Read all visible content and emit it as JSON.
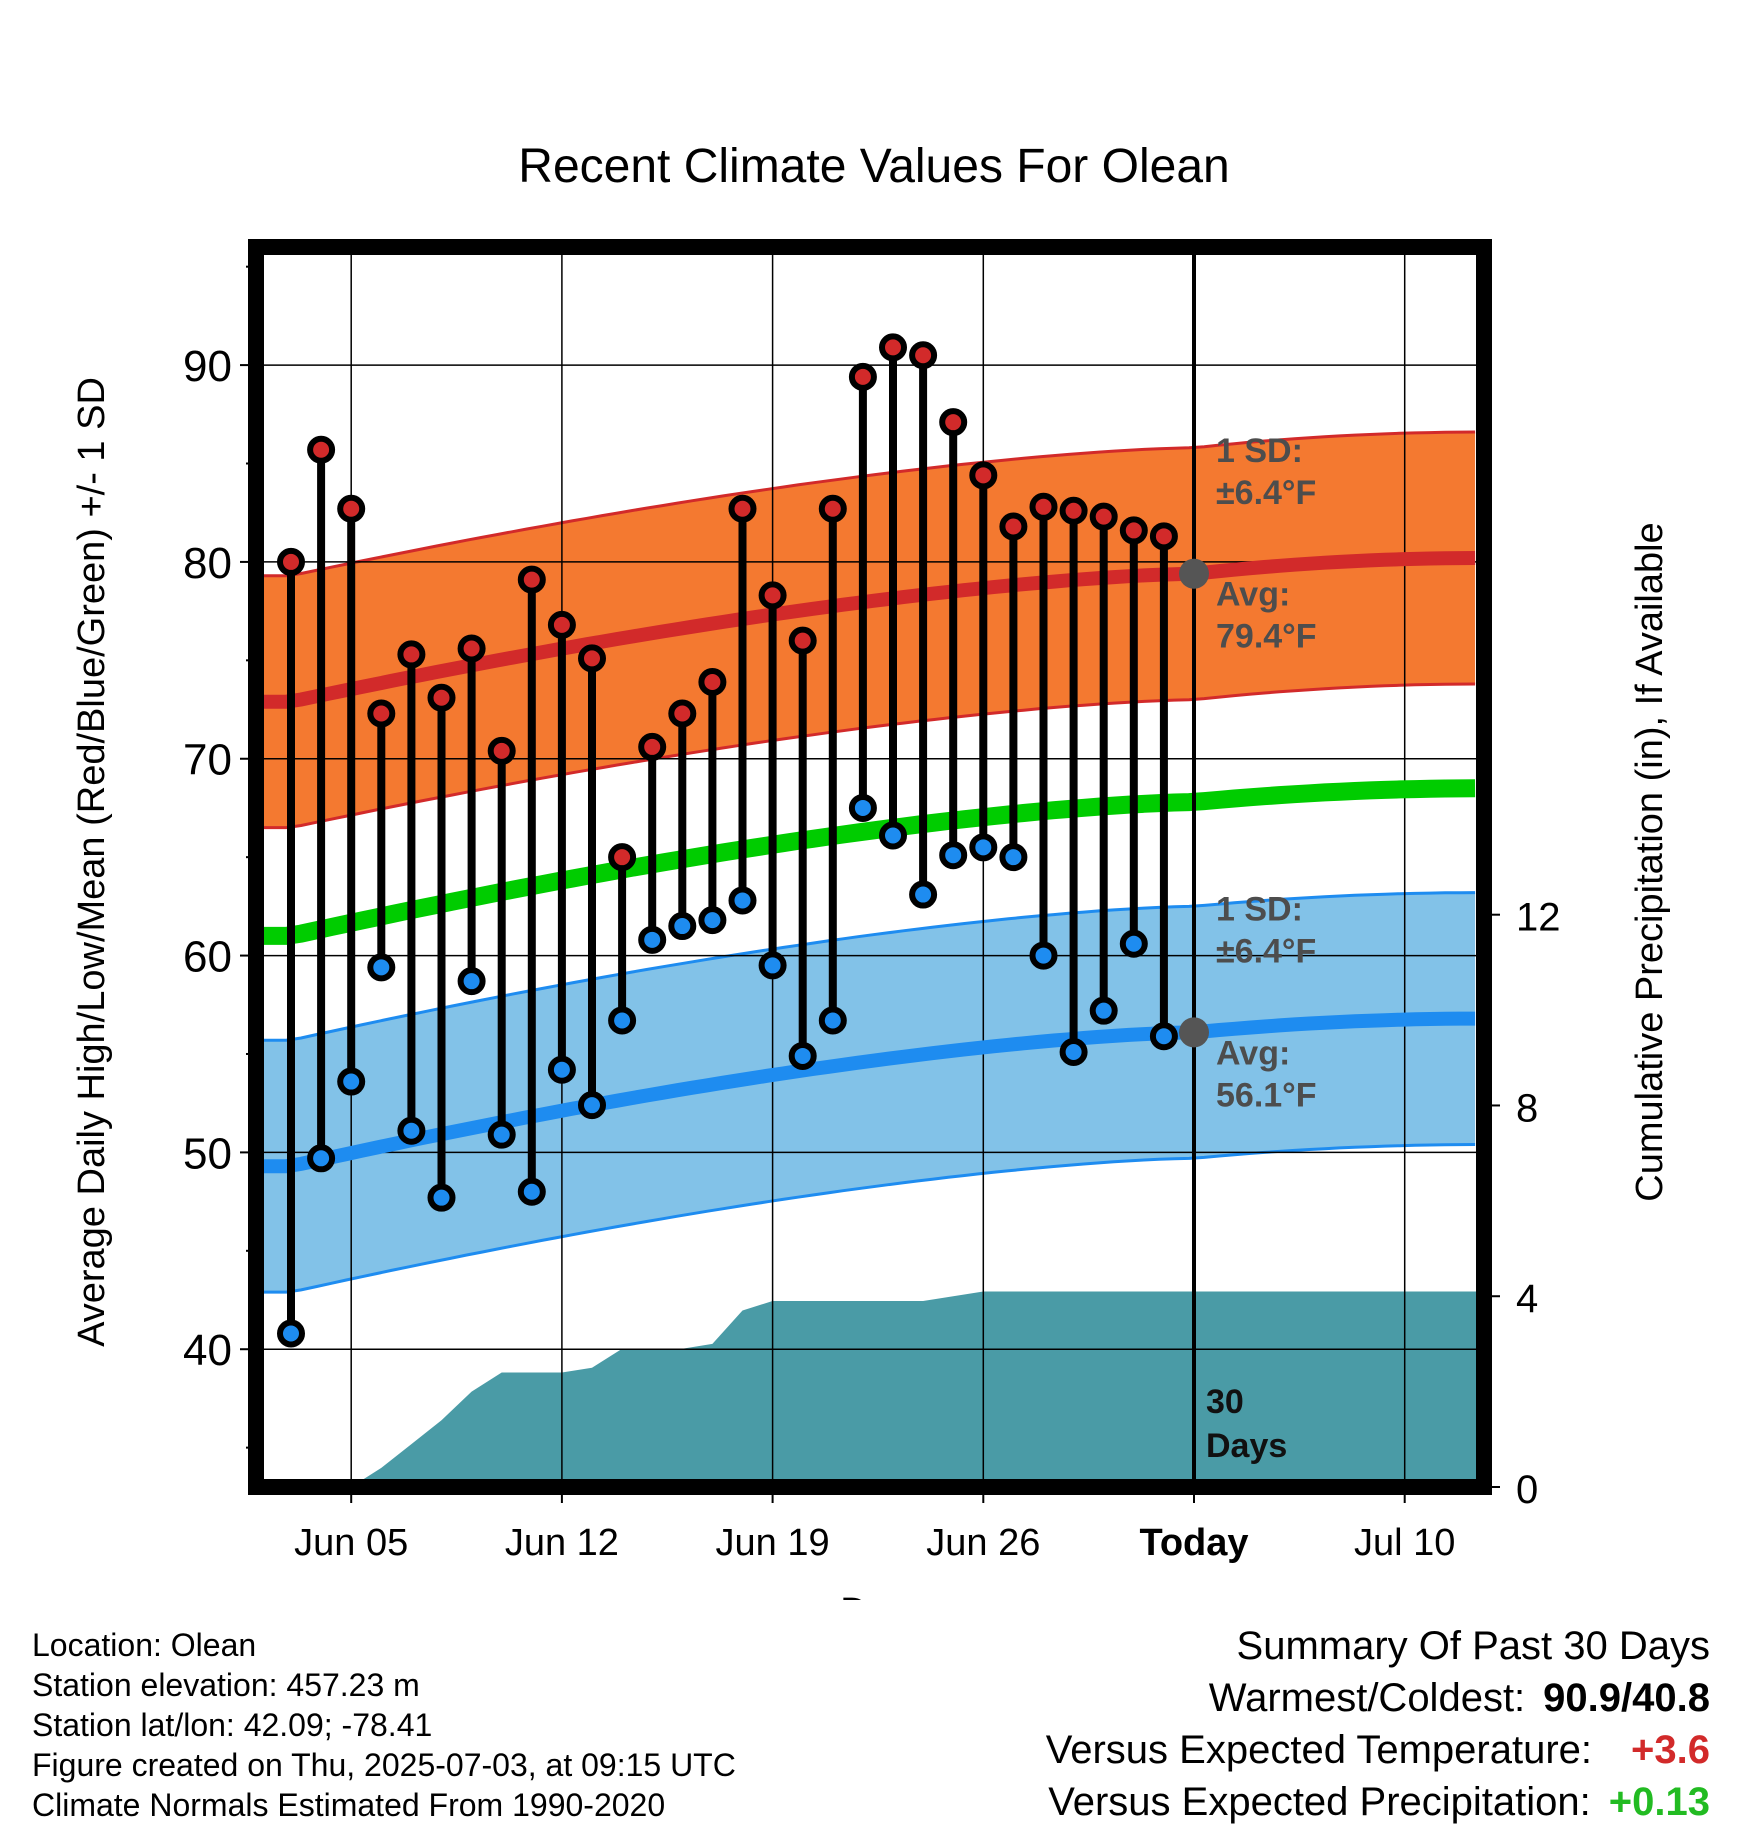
{
  "chart_data": {
    "type": "line",
    "title": "Recent Climate Values For Olean",
    "xlabel": "Day",
    "ylabel": "Average Daily High/Low/Mean (Red/Blue/Green) +/- 1 SD",
    "y2label": "Cumulative Precipitation (in), If Available",
    "x_tick_labels": [
      "Jun 05",
      "Jun 12",
      "Jun 19",
      "Jun 26",
      "Today",
      "Jul 10"
    ],
    "y_ticks": [
      40,
      50,
      60,
      70,
      80,
      90
    ],
    "y2_ticks": [
      0,
      4,
      8,
      12
    ],
    "ylim": [
      33,
      96
    ],
    "y2lim": [
      0,
      26
    ],
    "today_index": 30,
    "today_label": "30 Days",
    "high_band_labels": {
      "sd": "1 SD:",
      "sd_value": "±6.4°F",
      "avg": "Avg:",
      "avg_value": "79.4°F"
    },
    "low_band_labels": {
      "sd": "1 SD:",
      "sd_value": "±6.4°F",
      "avg": "Avg:",
      "avg_value": "56.1°F"
    },
    "normal_high": {
      "start": 72.9,
      "today": 79.4,
      "end": 80.2
    },
    "normal_low": {
      "start": 49.3,
      "today": 56.1,
      "end": 56.8
    },
    "normal_mean": {
      "start": 61.0,
      "today": 67.8,
      "end": 68.5
    },
    "sd": 6.4,
    "daily_high": [
      80.0,
      85.7,
      82.7,
      72.3,
      75.3,
      73.1,
      75.6,
      70.4,
      79.1,
      76.8,
      75.1,
      65.0,
      70.6,
      72.3,
      73.9,
      82.7,
      78.3,
      76.0,
      82.7,
      89.4,
      90.9,
      90.5,
      87.1,
      84.4,
      81.8,
      82.8,
      82.6,
      82.3,
      81.6,
      81.3
    ],
    "daily_low": [
      40.8,
      49.7,
      53.6,
      59.4,
      51.1,
      47.7,
      58.7,
      50.9,
      48.0,
      54.2,
      52.4,
      56.7,
      60.8,
      61.5,
      61.8,
      62.8,
      59.5,
      54.9,
      56.7,
      67.5,
      66.1,
      63.1,
      65.1,
      65.5,
      65.0,
      60.0,
      55.1,
      57.2,
      60.6,
      55.9
    ],
    "cumulative_precip": [
      0.0,
      0.0,
      0.0,
      0.4,
      0.9,
      1.4,
      2.0,
      2.4,
      2.4,
      2.4,
      2.5,
      2.9,
      2.9,
      2.9,
      3.0,
      3.7,
      3.9,
      3.9,
      3.9,
      3.9,
      3.9,
      3.9,
      4.0,
      4.1,
      4.1,
      4.1,
      4.1,
      4.1,
      4.1,
      4.1,
      4.1,
      4.1,
      4.1,
      4.1,
      4.1,
      4.1,
      4.1,
      4.1,
      4.1,
      4.1,
      4.1,
      4.1
    ],
    "grid": true,
    "colors": {
      "high_band": "#f47930",
      "high_line": "#d22a2a",
      "low_band": "#82c2e8",
      "low_line": "#1e8cf0",
      "mean_line": "#00cc00",
      "precip": "#4a9ba6",
      "high_dot": "#d22a2a",
      "low_dot": "#1e8cf0",
      "avg_marker": "#555555",
      "annot_text": "#4d4d4d"
    }
  },
  "info": {
    "location": "Location: Olean",
    "elevation": "Station elevation: 457.23 m",
    "latlon": "Station lat/lon: 42.09; -78.41",
    "created": "Figure created on Thu, 2025-07-03, at 09:15 UTC",
    "normals": "Climate Normals Estimated From 1990-2020"
  },
  "summary": {
    "title": "Summary Of Past 30 Days",
    "warm_cold_label": "Warmest/Coldest:",
    "warm_cold_value": "90.9/40.8",
    "temp_label": "Versus Expected Temperature:",
    "temp_value": "+3.6",
    "temp_color": "#d22a2a",
    "precip_label": "Versus Expected Precipitation:",
    "precip_value": "+0.13",
    "precip_color": "#22bb22"
  }
}
